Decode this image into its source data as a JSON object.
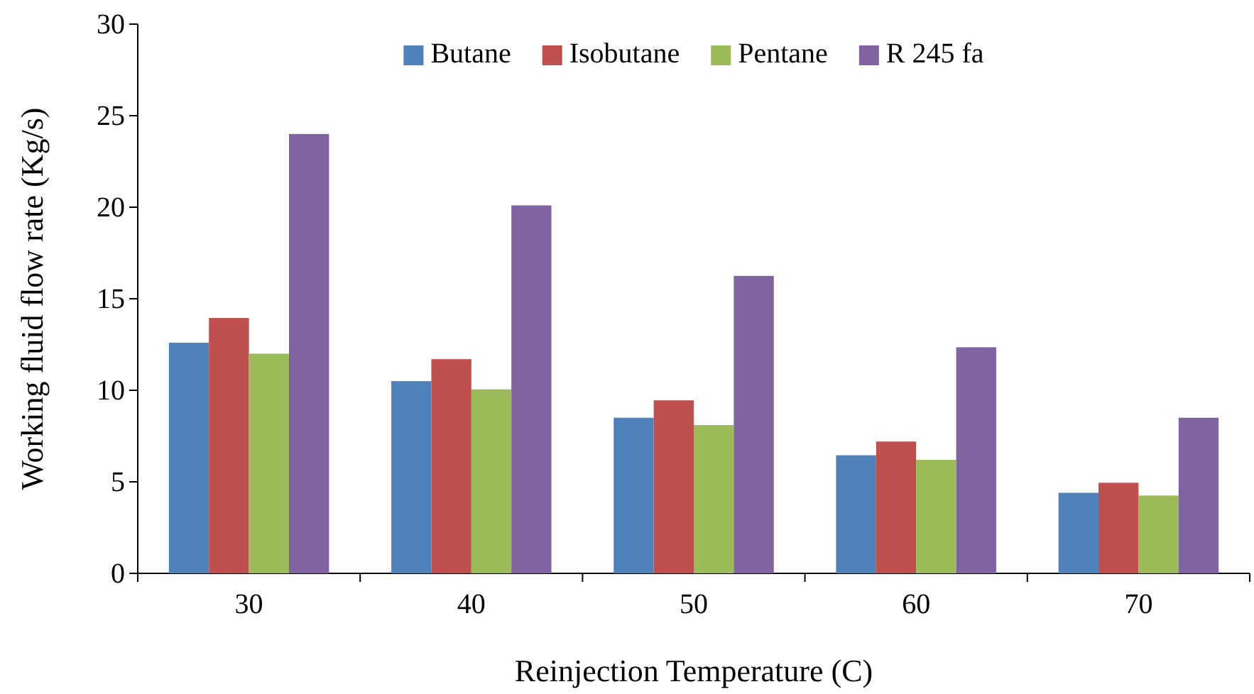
{
  "chart_data": {
    "type": "bar",
    "xlabel": "Reinjection Temperature (C)",
    "ylabel": "Working fluid flow rate (Kg/s)",
    "categories": [
      "30",
      "40",
      "50",
      "60",
      "70"
    ],
    "series": [
      {
        "name": "Butane",
        "color": "#4f81bd",
        "values": [
          12.6,
          10.5,
          8.5,
          6.45,
          4.4
        ]
      },
      {
        "name": "Isobutane",
        "color": "#c0504d",
        "values": [
          13.95,
          11.7,
          9.45,
          7.2,
          4.95
        ]
      },
      {
        "name": "Pentane",
        "color": "#9bbb59",
        "values": [
          12.0,
          10.05,
          8.1,
          6.2,
          4.25
        ]
      },
      {
        "name": "R 245 fa",
        "color": "#8064a2",
        "values": [
          24.0,
          20.1,
          16.25,
          12.35,
          8.5
        ]
      }
    ],
    "ylim": [
      0,
      30
    ],
    "yticks": [
      0,
      5,
      10,
      15,
      20,
      25,
      30
    ],
    "grid": false,
    "legend": "top"
  }
}
